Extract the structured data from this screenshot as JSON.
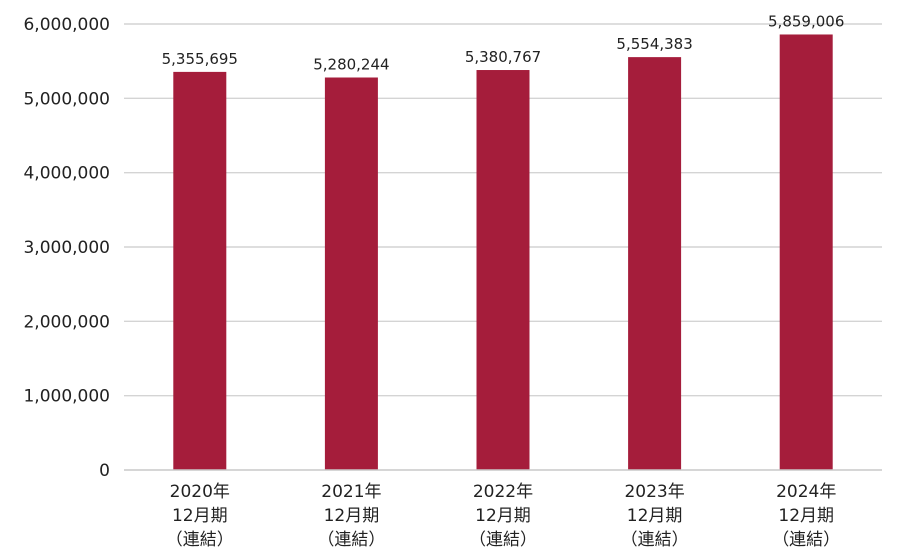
{
  "chart_data": {
    "type": "bar",
    "title": "",
    "xlabel": "",
    "ylabel": "",
    "ylim": [
      0,
      6000000
    ],
    "yticks": [
      0,
      1000000,
      2000000,
      3000000,
      4000000,
      5000000,
      6000000
    ],
    "ytick_labels": [
      "0",
      "1,000,000",
      "2,000,000",
      "3,000,000",
      "4,000,000",
      "5,000,000",
      "6,000,000"
    ],
    "grid": true,
    "legend": "none",
    "bar_color": "#a51d3b",
    "categories": [
      [
        "2020年",
        "12月期",
        "（連結）"
      ],
      [
        "2021年",
        "12月期",
        "（連結）"
      ],
      [
        "2022年",
        "12月期",
        "（連結）"
      ],
      [
        "2023年",
        "12月期",
        "（連結）"
      ],
      [
        "2024年",
        "12月期",
        "（連結）"
      ]
    ],
    "values": [
      5355695,
      5280244,
      5380767,
      5554383,
      5859006
    ],
    "data_labels": [
      "5,355,695",
      "5,280,244",
      "5,380,767",
      "5,554,383",
      "5,859,006"
    ]
  }
}
